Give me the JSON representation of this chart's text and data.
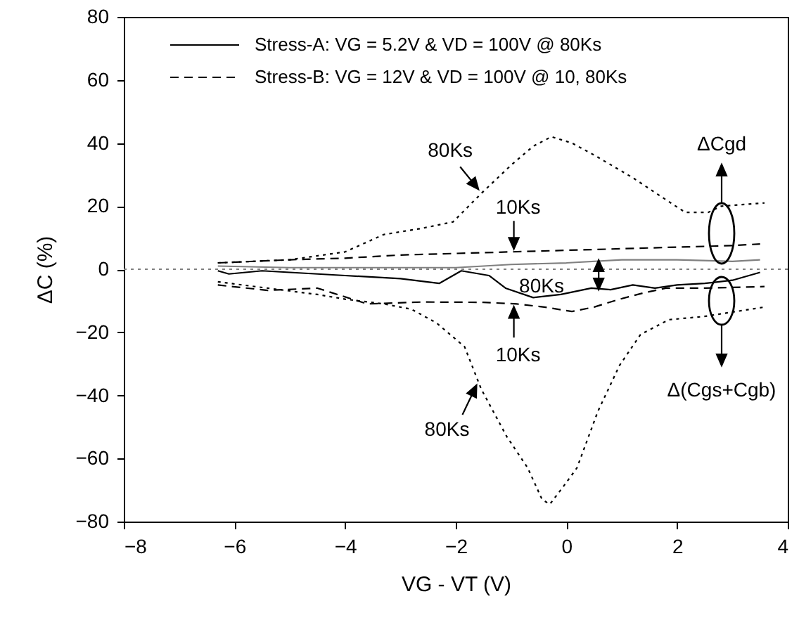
{
  "chart_data": {
    "type": "line",
    "xlabel": "VG - VT (V)",
    "ylabel": "ΔC (%)",
    "xlim": [
      -8,
      4
    ],
    "xticks": [
      -8,
      -6,
      -4,
      -2,
      0,
      2,
      4
    ],
    "ylim": [
      -80,
      80
    ],
    "yticks": [
      -80,
      -60,
      -40,
      -20,
      0,
      20,
      40,
      60,
      80
    ],
    "legend": "top left",
    "series": [
      {
        "name": "Stress-A: VG = 5.2V & VD = 100V @ 80Ks",
        "color": "#000000",
        "line_style": "solid",
        "x": [
          -6.3,
          -6.1,
          -5.5,
          -5,
          -4.5,
          -4,
          -3.5,
          -3,
          -2.3,
          -1.9,
          -1.4,
          -1.1,
          -0.6,
          -0.1,
          0.45,
          0.8,
          1.2,
          1.6,
          2,
          2.5,
          3,
          3.5
        ],
        "values": [
          -0.5,
          -1.5,
          -0.5,
          -1,
          -1.5,
          -2,
          -2.5,
          -3,
          -4.5,
          -0.5,
          -2,
          -6,
          -9,
          -8,
          -6,
          -6.5,
          -5,
          -6,
          -5,
          -4.5,
          -3.5,
          -1
        ]
      },
      {
        "color": "#808080",
        "line_style": "solid",
        "x": [
          -6.3,
          -5,
          -4,
          -3,
          -2,
          -1,
          0,
          1,
          2,
          3,
          3.5
        ],
        "values": [
          1,
          0.5,
          0.5,
          0.5,
          0.5,
          1.5,
          2,
          3,
          3,
          2.5,
          3
        ]
      },
      {
        "name": "Stress-B: VG = 12V & VD = 100V @ 10, 80Ks",
        "color": "#000000",
        "line_style": "dashed",
        "x": [
          -6.3,
          -5,
          -4,
          -3,
          -2,
          -1,
          0,
          1,
          2,
          3,
          3.5
        ],
        "values": [
          2,
          3,
          3.5,
          4.5,
          5,
          5.5,
          6,
          6.5,
          7,
          7.5,
          8
        ]
      },
      {
        "color": "#000000",
        "line_style": "dotted",
        "x": [
          -6.3,
          -5,
          -4,
          -3.3,
          -2.6,
          -2.05,
          -1.54,
          -1,
          -0.6,
          -0.27,
          0.1,
          0.52,
          1.2,
          1.8,
          2.15,
          2.56,
          2.8,
          3.58
        ],
        "values": [
          2,
          3,
          5.5,
          11,
          13,
          15,
          24,
          33,
          39,
          42,
          40,
          36,
          29,
          22,
          18,
          18,
          20,
          21
        ]
      },
      {
        "color": "#000000",
        "line_style": "dashed",
        "x": [
          -6.3,
          -5.4,
          -4.5,
          -3.6,
          -2.6,
          -1.5,
          -0.9,
          -0.4,
          0.1,
          0.5,
          0.96,
          1.4,
          1.8,
          2.5,
          3.58
        ],
        "values": [
          -5,
          -6.7,
          -6,
          -11,
          -10.4,
          -10.5,
          -11,
          -12,
          -13.4,
          -12,
          -9.5,
          -7.5,
          -6,
          -6,
          -5.5
        ]
      },
      {
        "color": "#000000",
        "line_style": "dotted",
        "x": [
          -6.3,
          -5.4,
          -4.5,
          -4,
          -3.3,
          -2.8,
          -2.35,
          -1.84,
          -1.54,
          -1.08,
          -0.7,
          -0.44,
          -0.3,
          -0.06,
          0.19,
          0.57,
          0.96,
          1.34,
          1.85,
          2.48,
          3.58
        ],
        "values": [
          -4,
          -6,
          -8,
          -9.5,
          -11,
          -12.7,
          -17,
          -24.6,
          -38,
          -53,
          -63,
          -73,
          -74.5,
          -69,
          -63,
          -45,
          -30.5,
          -20.7,
          -16,
          -15,
          -12
        ]
      }
    ],
    "ref_lines": [
      {
        "axis": "y",
        "value": 0,
        "color": "#808080",
        "line_style": "dotted"
      }
    ],
    "annotations": [
      {
        "text": "80Ks",
        "x": -1.54,
        "y": 24
      },
      {
        "text": "10Ks",
        "x": -0.95,
        "y": 5.5
      },
      "80Ks",
      {
        "text": "10Ks",
        "x": -0.95,
        "y": -11
      },
      {
        "text": "80Ks",
        "x": -1.6,
        "y": -35
      },
      "ΔCgd",
      "Δ(Cgs+Cgb)"
    ]
  }
}
